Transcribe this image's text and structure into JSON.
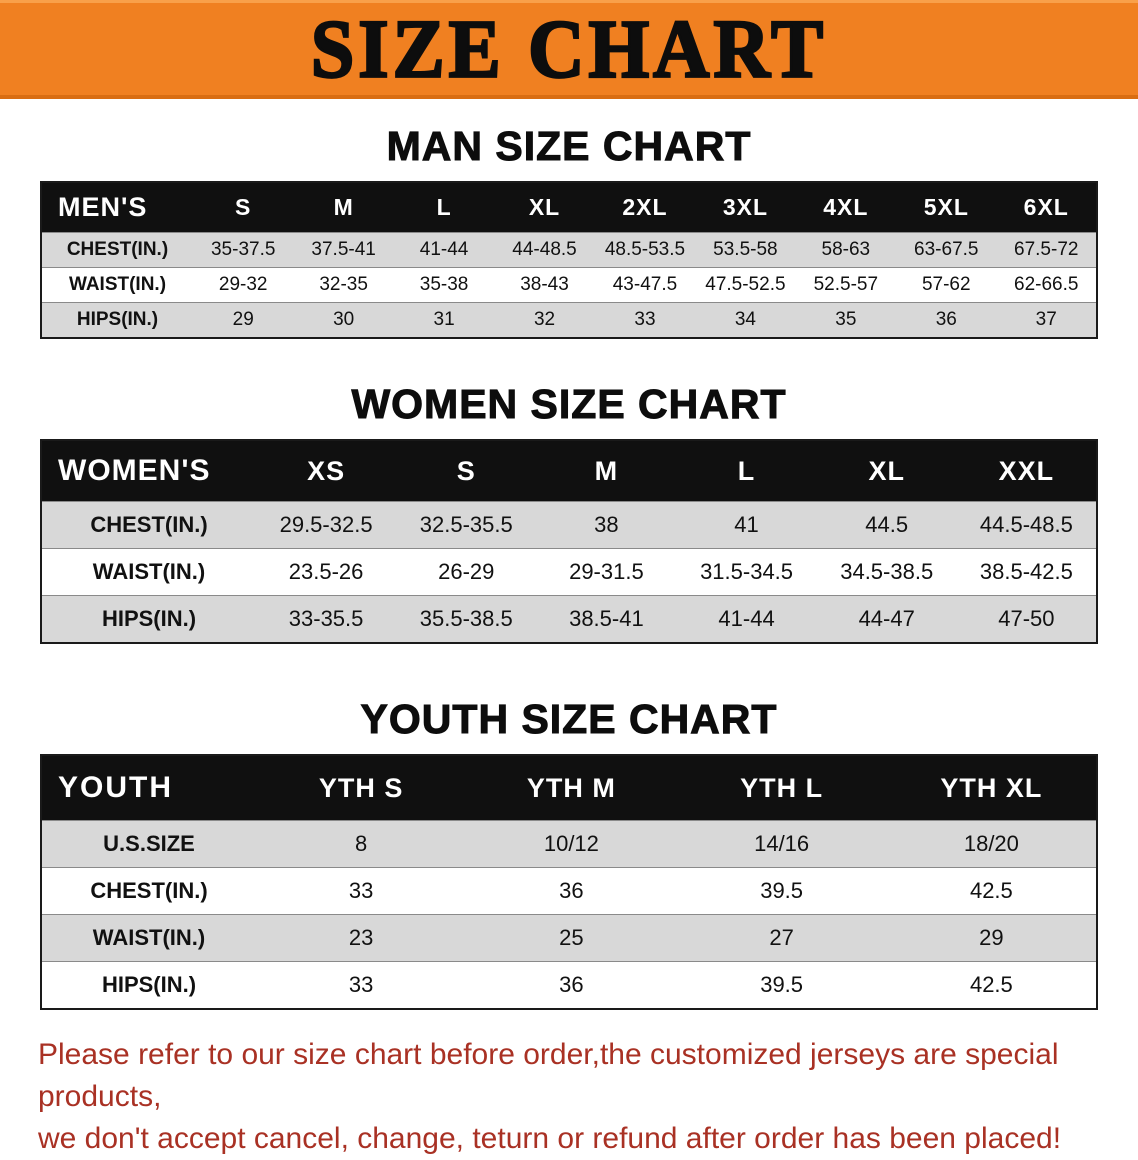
{
  "banner": {
    "title": "SIZE CHART"
  },
  "sections": {
    "men": {
      "heading": "MAN SIZE CHART",
      "table": {
        "header": [
          "MEN'S",
          "S",
          "M",
          "L",
          "XL",
          "2XL",
          "3XL",
          "4XL",
          "5XL",
          "6XL"
        ],
        "rows": [
          [
            "CHEST(IN.)",
            "35-37.5",
            "37.5-41",
            "41-44",
            "44-48.5",
            "48.5-53.5",
            "53.5-58",
            "58-63",
            "63-67.5",
            "67.5-72"
          ],
          [
            "WAIST(IN.)",
            "29-32",
            "32-35",
            "35-38",
            "38-43",
            "43-47.5",
            "47.5-52.5",
            "52.5-57",
            "57-62",
            "62-66.5"
          ],
          [
            "HIPS(IN.)",
            "29",
            "30",
            "31",
            "32",
            "33",
            "34",
            "35",
            "36",
            "37"
          ]
        ]
      }
    },
    "women": {
      "heading": "WOMEN SIZE CHART",
      "table": {
        "header": [
          "WOMEN'S",
          "XS",
          "S",
          "M",
          "L",
          "XL",
          "XXL"
        ],
        "rows": [
          [
            "CHEST(IN.)",
            "29.5-32.5",
            "32.5-35.5",
            "38",
            "41",
            "44.5",
            "44.5-48.5"
          ],
          [
            "WAIST(IN.)",
            "23.5-26",
            "26-29",
            "29-31.5",
            "31.5-34.5",
            "34.5-38.5",
            "38.5-42.5"
          ],
          [
            "HIPS(IN.)",
            "33-35.5",
            "35.5-38.5",
            "38.5-41",
            "41-44",
            "44-47",
            "47-50"
          ]
        ]
      }
    },
    "youth": {
      "heading": "YOUTH SIZE CHART",
      "table": {
        "header": [
          "YOUTH",
          "YTH S",
          "YTH M",
          "YTH L",
          "YTH XL"
        ],
        "rows": [
          [
            "U.S.SIZE",
            "8",
            "10/12",
            "14/16",
            "18/20"
          ],
          [
            "CHEST(IN.)",
            "33",
            "36",
            "39.5",
            "42.5"
          ],
          [
            "WAIST(IN.)",
            "23",
            "25",
            "27",
            "29"
          ],
          [
            "HIPS(IN.)",
            "33",
            "36",
            "39.5",
            "42.5"
          ]
        ]
      }
    }
  },
  "disclaimer": {
    "line1": "Please refer to our size chart before order,the customized jerseys are special products,",
    "line2": "we don't accept cancel, change, teturn or refund after order has been placed!"
  },
  "colors": {
    "banner_bg": "#f08021",
    "table_header_bg": "#101010",
    "row_gray": "#d8d8d8",
    "disclaimer_red": "#a93124"
  }
}
